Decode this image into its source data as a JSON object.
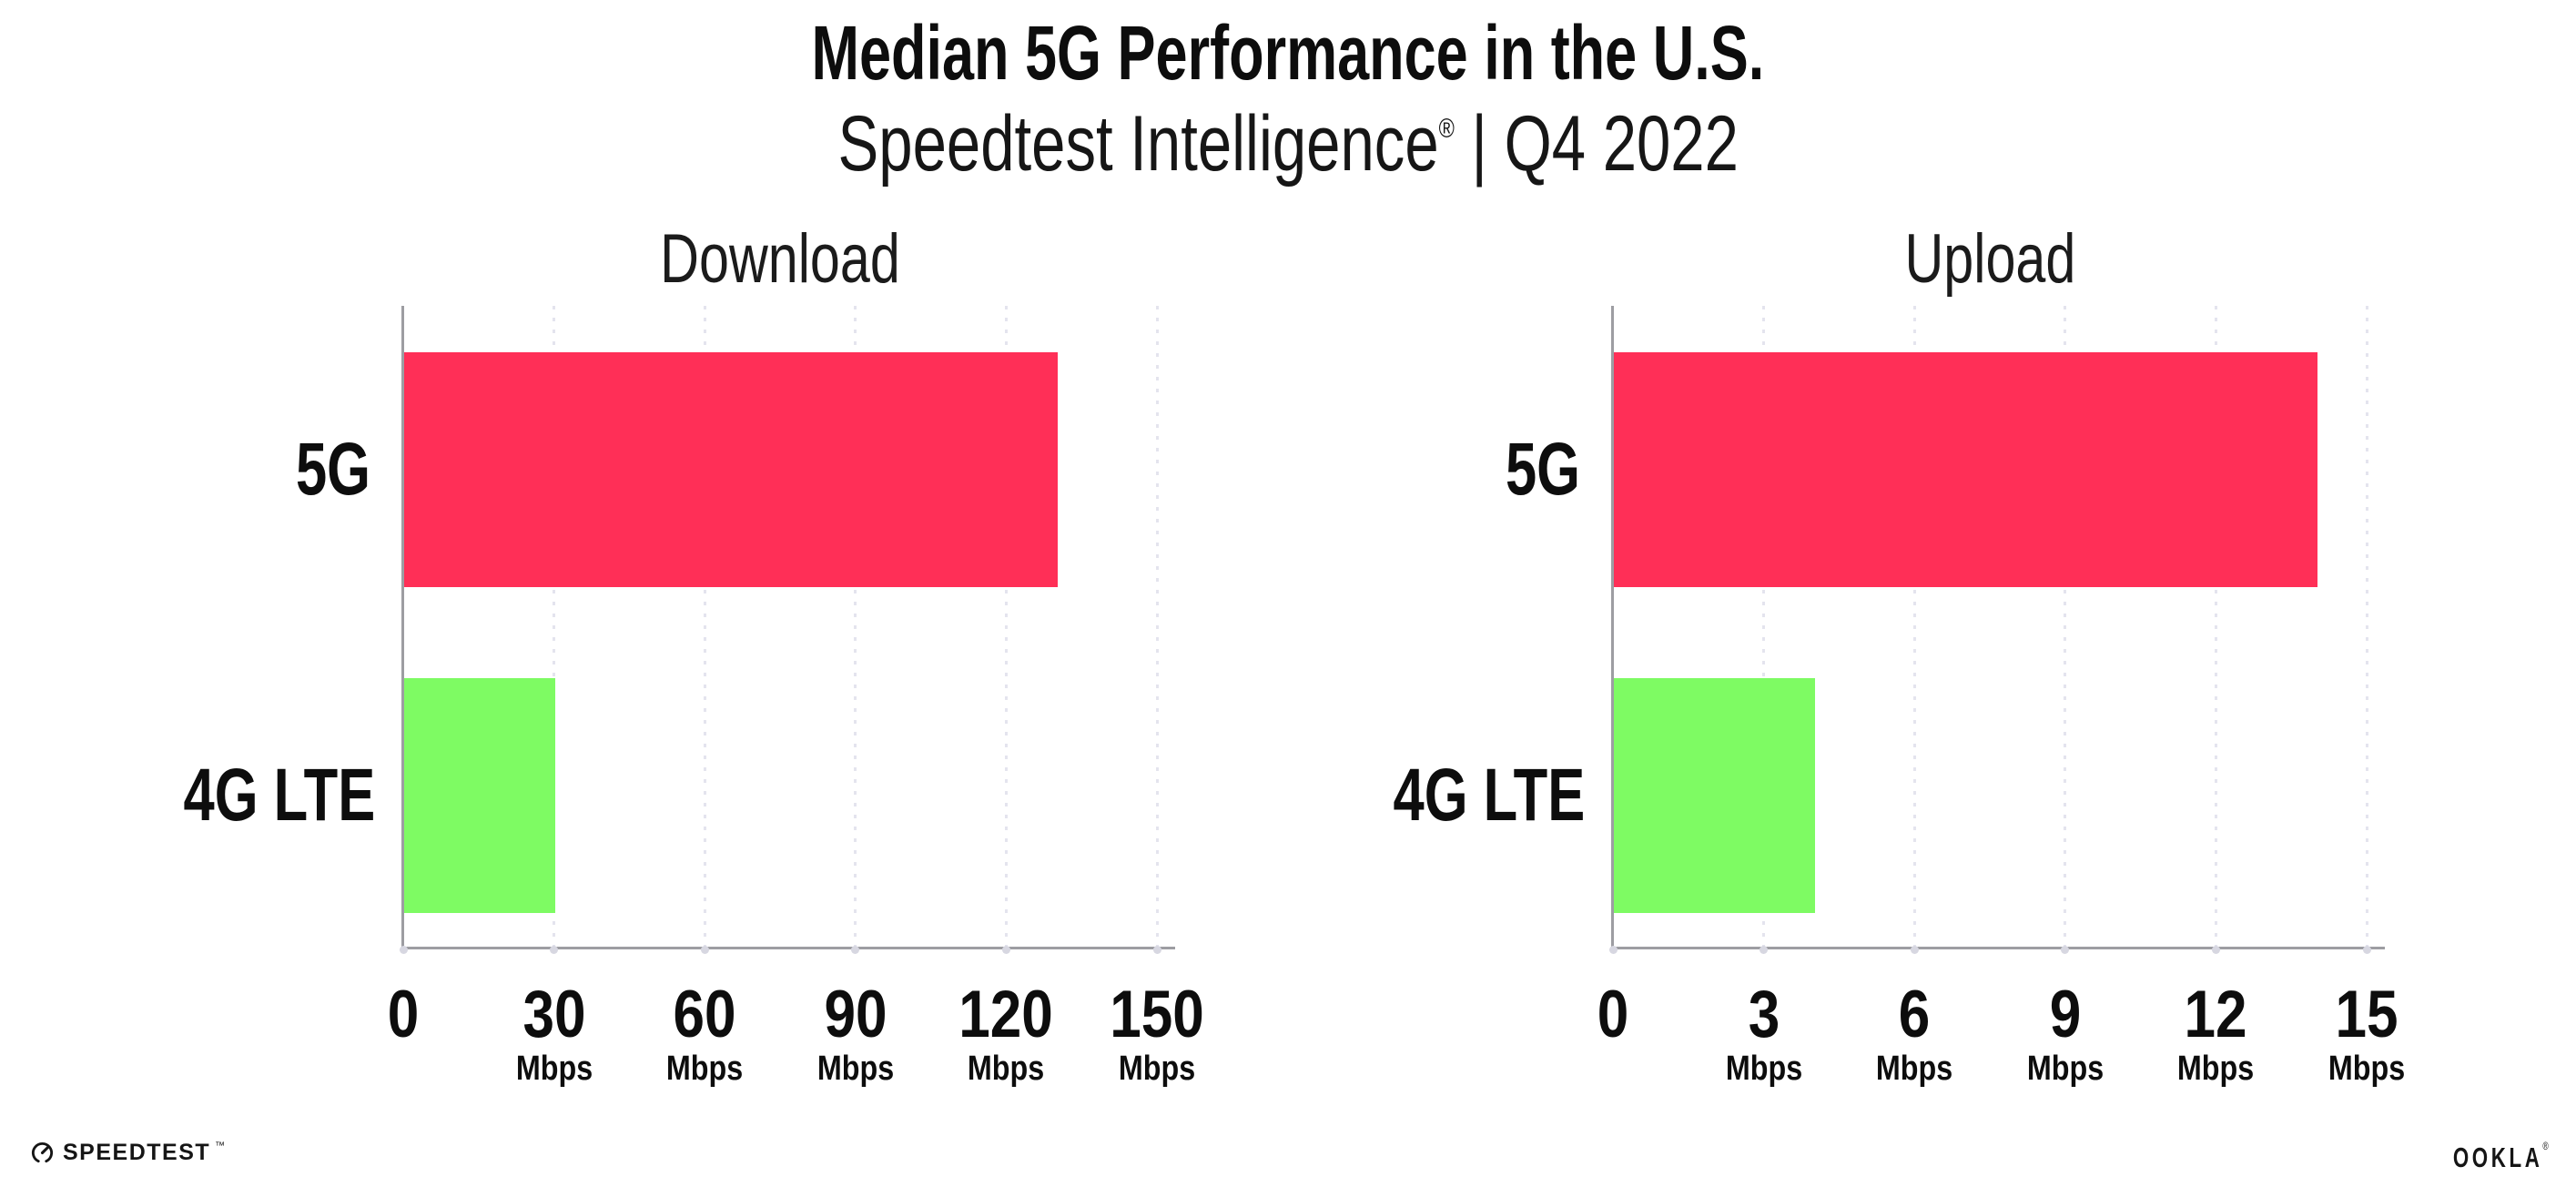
{
  "header": {
    "title": "Median 5G Performance in the U.S.",
    "subtitle_brand": "Speedtest Intelligence",
    "subtitle_reg": "®",
    "subtitle_rest": " | Q4 2022"
  },
  "footer": {
    "speedtest_wordmark": "SPEEDTEST",
    "speedtest_mark": "™",
    "ookla_wordmark": "OOKLA",
    "ookla_mark": "®"
  },
  "colors": {
    "bar_5g": "#FF2F57",
    "bar_4g_lte": "#7EFB63",
    "axis": "#9D9DA2",
    "gridline": "#E4E4EE",
    "tick_dot": "#D7D7E1",
    "text": "#0D0D0D"
  },
  "chart_data": [
    {
      "type": "bar",
      "orientation": "horizontal",
      "title": "Download",
      "categories": [
        "5G",
        "4G LTE"
      ],
      "values": [
        130,
        30
      ],
      "unit": "Mbps",
      "xlabel": "",
      "ylabel": "",
      "xlim": [
        0,
        150
      ],
      "xticks": [
        0,
        30,
        60,
        90,
        120,
        150
      ],
      "bar_colors": [
        "#FF2F57",
        "#7EFB63"
      ],
      "grid": "vertical-dotted",
      "legend": "none"
    },
    {
      "type": "bar",
      "orientation": "horizontal",
      "title": "Upload",
      "categories": [
        "5G",
        "4G LTE"
      ],
      "values": [
        14,
        4
      ],
      "unit": "Mbps",
      "xlabel": "",
      "ylabel": "",
      "xlim": [
        0,
        15
      ],
      "xticks": [
        0,
        3,
        6,
        9,
        12,
        15
      ],
      "bar_colors": [
        "#FF2F57",
        "#7EFB63"
      ],
      "grid": "vertical-dotted",
      "legend": "none"
    }
  ]
}
